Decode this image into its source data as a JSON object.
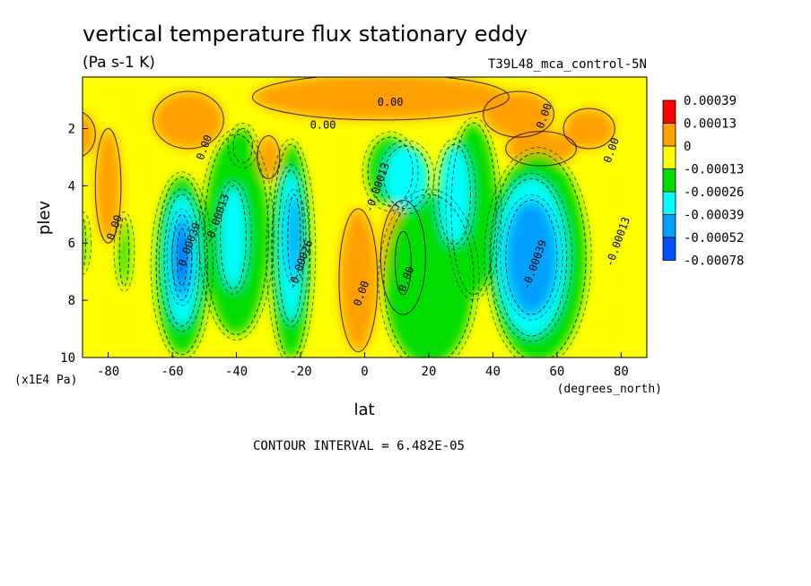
{
  "chart_data": {
    "type": "heatmap",
    "title": "vertical temperature flux stationary eddy",
    "units": "(Pa s-1 K)",
    "dataset": "T39L48_mca_control-5N",
    "xlabel": "lat",
    "x_unit": "(degrees_north)",
    "ylabel": "plev",
    "y_unit": "(x1E4 Pa)",
    "xlim": [
      -88,
      88
    ],
    "ylim": [
      10,
      0.2
    ],
    "x_ticks": [
      -80,
      -60,
      -40,
      -20,
      0,
      20,
      40,
      60,
      80
    ],
    "y_ticks": [
      2,
      4,
      6,
      8,
      10
    ],
    "footer": "CONTOUR INTERVAL = 6.482E-05",
    "legend": {
      "position": "right",
      "labels": [
        "0.00039",
        "0.00013",
        "0",
        "-0.00013",
        "-0.00026",
        "-0.00039",
        "-0.00052",
        "-0.00078"
      ],
      "colors": [
        "#ff0000",
        "#ffa000",
        "#ffff00",
        "#00dd00",
        "#00ffff",
        "#00a0ff",
        "#0050ff"
      ]
    },
    "regions": [
      {
        "level": 1,
        "lat": -90,
        "plev": 2.2,
        "w": 12,
        "h": 1.6
      },
      {
        "level": 1,
        "lat": -80,
        "plev": 4.0,
        "w": 8,
        "h": 4.0
      },
      {
        "level": 1,
        "lat": -55,
        "plev": 1.7,
        "w": 22,
        "h": 2.0
      },
      {
        "level": 1,
        "lat": -30,
        "plev": 3.0,
        "w": 7,
        "h": 1.5
      },
      {
        "level": 1,
        "lat": -2,
        "plev": 7.3,
        "w": 12,
        "h": 5.0
      },
      {
        "level": 1,
        "lat": 12,
        "plev": 6.5,
        "w": 14,
        "h": 4.0
      },
      {
        "level": 1,
        "lat": 5,
        "plev": 0.9,
        "w": 80,
        "h": 1.6
      },
      {
        "level": 1,
        "lat": 48,
        "plev": 1.5,
        "w": 22,
        "h": 1.6
      },
      {
        "level": 1,
        "lat": 70,
        "plev": 2.0,
        "w": 16,
        "h": 1.4
      },
      {
        "level": 1,
        "lat": 55,
        "plev": 2.7,
        "w": 22,
        "h": 1.2
      },
      {
        "level": 0,
        "lat": 12,
        "plev": 6.7,
        "w": 5,
        "h": 2.2
      },
      {
        "level": 3,
        "lat": -88,
        "plev": 6.0,
        "w": 2,
        "h": 1.8
      },
      {
        "level": 3,
        "lat": -75,
        "plev": 6.3,
        "w": 3,
        "h": 2.4
      },
      {
        "level": 3,
        "lat": -57,
        "plev": 6.8,
        "w": 16,
        "h": 6.2
      },
      {
        "level": 3,
        "lat": -40,
        "plev": 5.7,
        "w": 20,
        "h": 7.0
      },
      {
        "level": 3,
        "lat": -23,
        "plev": 6.3,
        "w": 12,
        "h": 7.5
      },
      {
        "level": 3,
        "lat": -38,
        "plev": 2.6,
        "w": 6,
        "h": 1.2
      },
      {
        "level": 3,
        "lat": 8,
        "plev": 3.5,
        "w": 14,
        "h": 2.4
      },
      {
        "level": 3,
        "lat": 20,
        "plev": 7.3,
        "w": 28,
        "h": 6.0
      },
      {
        "level": 3,
        "lat": 34,
        "plev": 4.8,
        "w": 14,
        "h": 6.0
      },
      {
        "level": 3,
        "lat": 54,
        "plev": 6.5,
        "w": 30,
        "h": 7.3
      },
      {
        "level": 4,
        "lat": -41,
        "plev": 5.8,
        "w": 8,
        "h": 3.6
      },
      {
        "level": 4,
        "lat": -23,
        "plev": 6.1,
        "w": 8,
        "h": 5.3
      },
      {
        "level": 4,
        "lat": -57,
        "plev": 6.6,
        "w": 11,
        "h": 4.6
      },
      {
        "level": 4,
        "lat": 13,
        "plev": 3.7,
        "w": 14,
        "h": 2.2
      },
      {
        "level": 4,
        "lat": 28,
        "plev": 4.3,
        "w": 10,
        "h": 3.5
      },
      {
        "level": 4,
        "lat": 52,
        "plev": 6.5,
        "w": 22,
        "h": 5.5
      },
      {
        "level": 5,
        "lat": -57,
        "plev": 6.5,
        "w": 6,
        "h": 3.0
      },
      {
        "level": 5,
        "lat": -22,
        "plev": 5.8,
        "w": 4,
        "h": 3.0
      },
      {
        "level": 5,
        "lat": 52,
        "plev": 6.5,
        "w": 16,
        "h": 4.0
      },
      {
        "level": 6,
        "lat": -57,
        "plev": 6.5,
        "w": 3,
        "h": 2.0
      }
    ],
    "contour_labels": [
      {
        "text": "0.00",
        "lat": 8,
        "plev": 1.2
      },
      {
        "text": "0.00",
        "lat": -13,
        "plev": 2.0
      },
      {
        "text": "0.00",
        "lat": -49,
        "plev": 2.7
      },
      {
        "text": "0.00",
        "lat": 57,
        "plev": 1.6
      },
      {
        "text": "0.00",
        "lat": 78,
        "plev": 2.8
      },
      {
        "text": "0.00",
        "lat": -77,
        "plev": 5.5
      },
      {
        "text": "0.00",
        "lat": 0,
        "plev": 7.8
      },
      {
        "text": "0.00",
        "lat": 14,
        "plev": 7.3
      },
      {
        "text": "-0.00013",
        "lat": -45,
        "plev": 5.2
      },
      {
        "text": "-0.00013",
        "lat": 5,
        "plev": 4.1
      },
      {
        "text": "-0.00013",
        "lat": 80,
        "plev": 6.0
      },
      {
        "text": "-0.00026",
        "lat": -19,
        "plev": 6.8
      },
      {
        "text": "-0.00039",
        "lat": -54,
        "plev": 6.2
      },
      {
        "text": "-0.00039",
        "lat": 54,
        "plev": 6.8
      }
    ]
  }
}
